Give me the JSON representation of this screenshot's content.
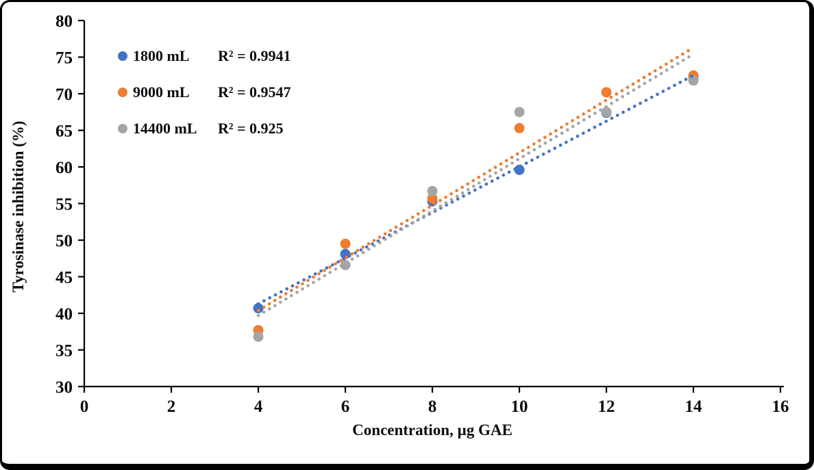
{
  "figure": {
    "frame_color": "#000000",
    "background": "#ffffff"
  },
  "chart_data": {
    "type": "scatter",
    "title": "",
    "xlabel": "Concentration, µg GAE",
    "ylabel": "Tyrosinase inhibition (%)",
    "xlim": [
      0,
      16
    ],
    "xtick_step": 2,
    "ylim": [
      30,
      80
    ],
    "ytick_step": 5,
    "grid": false,
    "legend_position": "top-left",
    "axis_color": "#000000",
    "text_color": "#0d0d0d",
    "series": [
      {
        "name": "1800 mL",
        "r2_label": "R² = 0.9941",
        "color": "#4472C4",
        "points": [
          [
            4,
            40.7
          ],
          [
            6,
            48.1
          ],
          [
            8,
            55.3
          ],
          [
            10,
            59.6
          ],
          [
            12,
            67.4
          ],
          [
            14,
            72.3
          ]
        ],
        "trendline": {
          "style": "dotted",
          "x1": 4,
          "y1": 41.3,
          "x2": 14,
          "y2": 72.5
        }
      },
      {
        "name": "9000 mL",
        "r2_label": "R² = 0.9547",
        "color": "#ED7D31",
        "points": [
          [
            4,
            37.7
          ],
          [
            6,
            49.5
          ],
          [
            8,
            55.7
          ],
          [
            10,
            65.3
          ],
          [
            12,
            70.2
          ],
          [
            14,
            72.5
          ]
        ],
        "trendline": {
          "style": "dotted",
          "x1": 4,
          "y1": 40.4,
          "x2": 14,
          "y2": 76.3
        }
      },
      {
        "name": "14400 mL",
        "r2_label": "R² = 0.925",
        "color": "#A5A5A5",
        "points": [
          [
            4,
            36.8
          ],
          [
            6,
            46.6
          ],
          [
            8,
            56.7
          ],
          [
            10,
            67.5
          ],
          [
            12,
            67.5
          ],
          [
            14,
            71.8
          ]
        ],
        "trendline": {
          "style": "dotted",
          "x1": 4,
          "y1": 39.7,
          "x2": 14,
          "y2": 75.4
        }
      }
    ]
  }
}
